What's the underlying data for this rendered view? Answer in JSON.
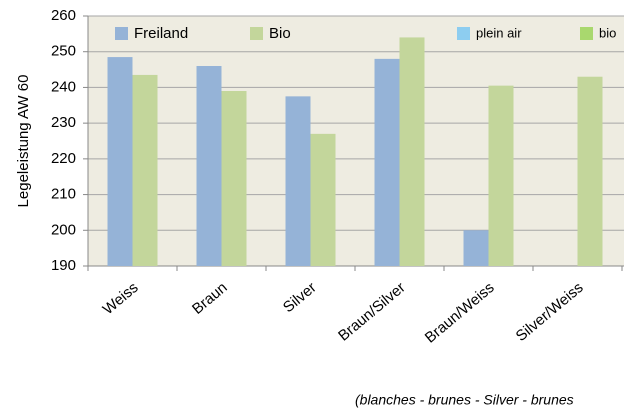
{
  "chart_data": {
    "type": "bar",
    "y_label": "Legeleistung AW 60",
    "note": "(blanches - brunes - Silver - brunes",
    "categories": [
      "Weiss",
      "Braun",
      "Silver",
      "Braun/Silver",
      "Braun/Weiss",
      "Silver/Weiss"
    ],
    "series": [
      {
        "name": "Freiland",
        "color": "#95b3d7",
        "values": [
          248.5,
          246,
          237.5,
          248,
          200,
          null
        ]
      },
      {
        "name": "Bio",
        "color": "#c3d69b",
        "values": [
          243.5,
          239,
          227,
          254,
          240.5,
          243
        ]
      },
      {
        "name": "plein air",
        "color": "#8dcdf0",
        "values": [
          null,
          null,
          null,
          null,
          null,
          null
        ]
      },
      {
        "name": "bio",
        "color": "#a9d86e",
        "values": [
          null,
          null,
          null,
          null,
          null,
          null
        ]
      }
    ],
    "ylim": [
      190,
      260
    ],
    "yticks": [
      190,
      200,
      210,
      220,
      230,
      240,
      250,
      260
    ],
    "grid": true
  }
}
